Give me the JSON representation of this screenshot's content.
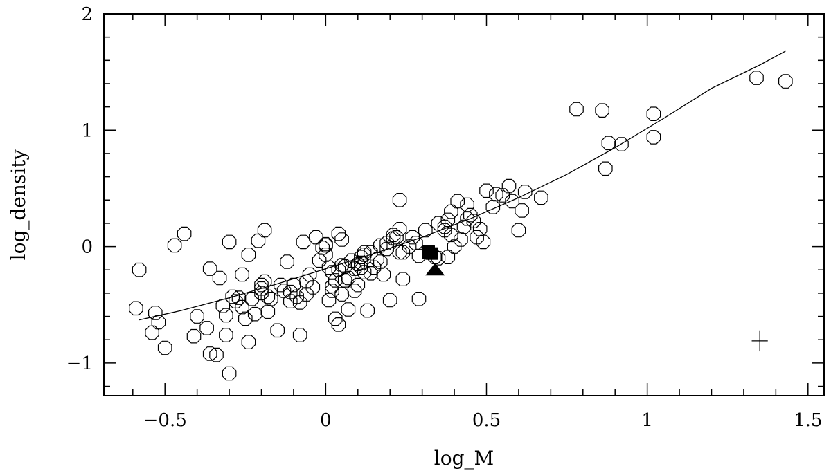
{
  "chart_data": {
    "type": "scatter",
    "title": "",
    "xlabel": "log_M",
    "ylabel": "log_density",
    "xlim": [
      -0.69,
      1.55
    ],
    "ylim": [
      -1.28,
      2.0
    ],
    "x_major_ticks": [
      -0.5,
      0,
      0.5,
      1,
      1.5
    ],
    "x_tick_labels": [
      "−0.5",
      "0",
      "0.5",
      "1",
      "1.5"
    ],
    "x_minor_step": 0.1,
    "y_major_ticks": [
      -1,
      0,
      1,
      2
    ],
    "y_tick_labels": [
      "−1",
      "0",
      "1",
      "2"
    ],
    "y_minor_step": 0.2,
    "grid": false,
    "legend": "none",
    "series": [
      {
        "marker": "open-octagon",
        "points": [
          [
            -0.59,
            -0.53
          ],
          [
            -0.58,
            -0.2
          ],
          [
            -0.54,
            -0.74
          ],
          [
            -0.53,
            -0.57
          ],
          [
            -0.52,
            -0.65
          ],
          [
            -0.5,
            -0.87
          ],
          [
            -0.47,
            0.01
          ],
          [
            -0.44,
            0.11
          ],
          [
            -0.41,
            -0.77
          ],
          [
            -0.4,
            -0.6
          ],
          [
            -0.37,
            -0.7
          ],
          [
            -0.36,
            -0.19
          ],
          [
            -0.36,
            -0.92
          ],
          [
            -0.34,
            -0.93
          ],
          [
            -0.33,
            -0.27
          ],
          [
            -0.32,
            -0.51
          ],
          [
            -0.31,
            -0.76
          ],
          [
            -0.31,
            -0.59
          ],
          [
            -0.3,
            -1.09
          ],
          [
            -0.3,
            0.04
          ],
          [
            -0.29,
            -0.43
          ],
          [
            -0.28,
            -0.47
          ],
          [
            -0.27,
            -0.44
          ],
          [
            -0.26,
            -0.52
          ],
          [
            -0.26,
            -0.24
          ],
          [
            -0.25,
            -0.62
          ],
          [
            -0.24,
            -0.07
          ],
          [
            -0.24,
            -0.82
          ],
          [
            -0.23,
            -0.45
          ],
          [
            -0.22,
            -0.58
          ],
          [
            -0.21,
            0.05
          ],
          [
            -0.2,
            -0.36
          ],
          [
            -0.2,
            -0.33
          ],
          [
            -0.2,
            -0.4
          ],
          [
            -0.19,
            -0.3
          ],
          [
            -0.19,
            0.14
          ],
          [
            -0.18,
            -0.43
          ],
          [
            -0.18,
            -0.56
          ],
          [
            -0.17,
            -0.45
          ],
          [
            -0.15,
            -0.72
          ],
          [
            -0.14,
            -0.33
          ],
          [
            -0.13,
            -0.38
          ],
          [
            -0.12,
            -0.13
          ],
          [
            -0.11,
            -0.47
          ],
          [
            -0.11,
            -0.39
          ],
          [
            -0.1,
            -0.33
          ],
          [
            -0.09,
            -0.43
          ],
          [
            -0.08,
            -0.76
          ],
          [
            -0.08,
            -0.48
          ],
          [
            -0.07,
            0.04
          ],
          [
            -0.06,
            -0.3
          ],
          [
            -0.06,
            -0.41
          ],
          [
            -0.05,
            -0.24
          ],
          [
            -0.04,
            -0.35
          ],
          [
            -0.03,
            0.08
          ],
          [
            -0.02,
            -0.12
          ],
          [
            -0.01,
            -0.01
          ],
          [
            0.0,
            0.01
          ],
          [
            0.0,
            0.02
          ],
          [
            0.0,
            -0.07
          ],
          [
            0.01,
            -0.46
          ],
          [
            0.01,
            -0.18
          ],
          [
            0.02,
            -0.38
          ],
          [
            0.02,
            -0.22
          ],
          [
            0.02,
            -0.34
          ],
          [
            0.03,
            -0.29
          ],
          [
            0.03,
            -0.62
          ],
          [
            0.04,
            -0.67
          ],
          [
            0.04,
            -0.2
          ],
          [
            0.04,
            0.11
          ],
          [
            0.05,
            0.06
          ],
          [
            0.05,
            -0.16
          ],
          [
            0.05,
            -0.41
          ],
          [
            0.06,
            -0.29
          ],
          [
            0.06,
            -0.17
          ],
          [
            0.07,
            -0.54
          ],
          [
            0.07,
            -0.27
          ],
          [
            0.08,
            -0.12
          ],
          [
            0.09,
            -0.19
          ],
          [
            0.09,
            -0.38
          ],
          [
            0.1,
            -0.33
          ],
          [
            0.1,
            -0.15
          ],
          [
            0.11,
            -0.14
          ],
          [
            0.11,
            -0.09
          ],
          [
            0.11,
            -0.18
          ],
          [
            0.12,
            -0.07
          ],
          [
            0.12,
            -0.22
          ],
          [
            0.12,
            -0.05
          ],
          [
            0.13,
            -0.55
          ],
          [
            0.14,
            -0.23
          ],
          [
            0.14,
            -0.05
          ],
          [
            0.15,
            -0.18
          ],
          [
            0.16,
            -0.11
          ],
          [
            0.17,
            0.01
          ],
          [
            0.17,
            -0.13
          ],
          [
            0.18,
            -0.24
          ],
          [
            0.19,
            0.03
          ],
          [
            0.19,
            -0.02
          ],
          [
            0.2,
            -0.46
          ],
          [
            0.21,
            0.07
          ],
          [
            0.21,
            0.1
          ],
          [
            0.22,
            0.08
          ],
          [
            0.23,
            0.15
          ],
          [
            0.23,
            0.4
          ],
          [
            0.23,
            -0.05
          ],
          [
            0.24,
            -0.05
          ],
          [
            0.24,
            -0.28
          ],
          [
            0.26,
            0.0
          ],
          [
            0.27,
            0.08
          ],
          [
            0.28,
            0.03
          ],
          [
            0.29,
            -0.45
          ],
          [
            0.29,
            -0.08
          ],
          [
            0.31,
            0.14
          ],
          [
            0.34,
            -0.09
          ],
          [
            0.35,
            -0.1
          ],
          [
            0.35,
            0.2
          ],
          [
            0.37,
            0.17
          ],
          [
            0.37,
            0.14
          ],
          [
            0.38,
            -0.09
          ],
          [
            0.38,
            0.23
          ],
          [
            0.39,
            0.3
          ],
          [
            0.39,
            0.1
          ],
          [
            0.4,
            0.0
          ],
          [
            0.41,
            0.39
          ],
          [
            0.42,
            0.06
          ],
          [
            0.43,
            0.17
          ],
          [
            0.44,
            0.36
          ],
          [
            0.44,
            0.24
          ],
          [
            0.45,
            0.27
          ],
          [
            0.46,
            0.22
          ],
          [
            0.47,
            0.08
          ],
          [
            0.48,
            0.15
          ],
          [
            0.49,
            0.04
          ],
          [
            0.5,
            0.48
          ],
          [
            0.52,
            0.34
          ],
          [
            0.53,
            0.45
          ],
          [
            0.55,
            0.44
          ],
          [
            0.57,
            0.52
          ],
          [
            0.58,
            0.39
          ],
          [
            0.6,
            0.14
          ],
          [
            0.61,
            0.31
          ],
          [
            0.62,
            0.47
          ],
          [
            0.67,
            0.42
          ],
          [
            0.78,
            1.18
          ],
          [
            0.86,
            1.17
          ],
          [
            0.87,
            0.67
          ],
          [
            0.88,
            0.89
          ],
          [
            0.92,
            0.88
          ],
          [
            1.02,
            1.14
          ],
          [
            1.02,
            0.94
          ],
          [
            1.34,
            1.45
          ],
          [
            1.43,
            1.42
          ]
        ]
      },
      {
        "marker": "filled-square",
        "points": [
          [
            0.32,
            -0.05
          ],
          [
            0.33,
            -0.06
          ],
          [
            0.32,
            -0.04
          ]
        ]
      },
      {
        "marker": "filled-triangle",
        "points": [
          [
            0.34,
            -0.2
          ]
        ]
      }
    ],
    "fit_curve": [
      [
        -0.58,
        -0.63
      ],
      [
        -0.45,
        -0.55
      ],
      [
        -0.3,
        -0.44
      ],
      [
        -0.15,
        -0.32
      ],
      [
        0.0,
        -0.19
      ],
      [
        0.15,
        -0.06
      ],
      [
        0.3,
        0.08
      ],
      [
        0.45,
        0.24
      ],
      [
        0.6,
        0.42
      ],
      [
        0.75,
        0.62
      ],
      [
        0.9,
        0.85
      ],
      [
        1.05,
        1.1
      ],
      [
        1.2,
        1.36
      ],
      [
        1.35,
        1.56
      ],
      [
        1.43,
        1.68
      ]
    ],
    "error_bar": {
      "x": 1.35,
      "y": -0.81,
      "dx": 0.025,
      "dy": 0.09
    }
  }
}
